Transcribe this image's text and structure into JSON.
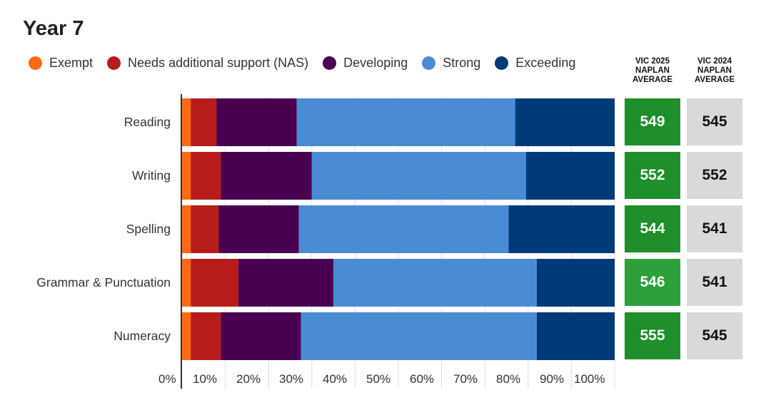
{
  "chart_data": {
    "type": "bar",
    "orientation": "horizontal",
    "stacked": true,
    "title": "Year 7",
    "categories": [
      "Reading",
      "Writing",
      "Spelling",
      "Grammar & Punctuation",
      "Numeracy"
    ],
    "series": [
      {
        "name": "Exempt",
        "color": "#ff6a13",
        "values": [
          2,
          2,
          2,
          2,
          2
        ]
      },
      {
        "name": "Needs additional support (NAS)",
        "color": "#b71c1c",
        "values": [
          6,
          7,
          6.5,
          11,
          7
        ]
      },
      {
        "name": "Developing",
        "color": "#4a0050",
        "values": [
          18.5,
          21,
          18.5,
          22,
          18.5
        ]
      },
      {
        "name": "Strong",
        "color": "#4a8bd6",
        "values": [
          50.5,
          49.5,
          48.5,
          47,
          54.5
        ]
      },
      {
        "name": "Exceeding",
        "color": "#003a78",
        "values": [
          23,
          20.5,
          24.5,
          18,
          18
        ]
      }
    ],
    "x_ticks": [
      "0%",
      "10%",
      "20%",
      "30%",
      "40%",
      "50%",
      "60%",
      "70%",
      "80%",
      "90%",
      "100%"
    ],
    "xlim": [
      0,
      100
    ],
    "legend_position": "top",
    "grid": true
  },
  "columns": {
    "vic2025_heading": "VIC 2025 NAPLAN AVERAGE",
    "vic2024_heading": "VIC 2024 NAPLAN AVERAGE"
  },
  "averages_2025": [
    "549",
    "552",
    "544",
    "546",
    "555"
  ],
  "averages_2024": [
    "545",
    "552",
    "541",
    "541",
    "545"
  ],
  "colors": {
    "vic2025_box": "#1e8f2a",
    "vic2025_box_highlight": "#2ca03a",
    "vic2024_box": "#d9d9d9"
  }
}
